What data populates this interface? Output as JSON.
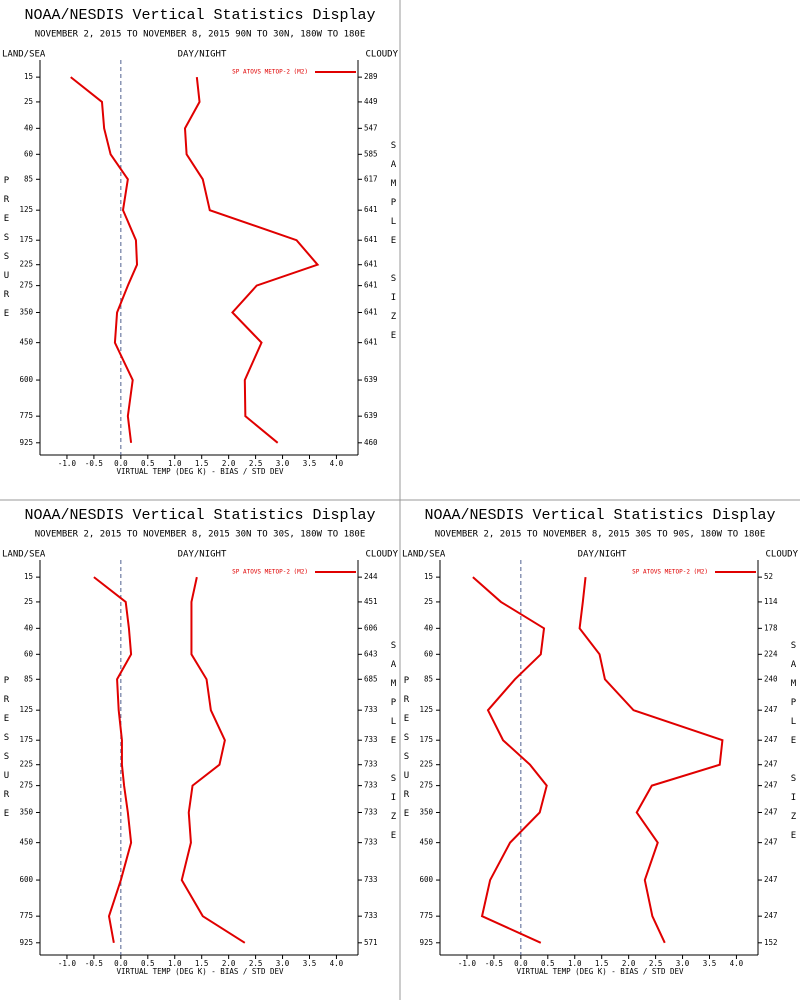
{
  "chart_data": [
    {
      "type": "line",
      "title": "NOAA/NESDIS Vertical Statistics Display",
      "subtitle": "NOVEMBER 2, 2015 TO NOVEMBER 8, 2015  90N TO 30N, 180W TO 180E",
      "header_left": "LAND/SEA",
      "header_center": "DAY/NIGHT",
      "header_right": "CLOUDY",
      "xlabel": "VIRTUAL TEMP (DEG K) - BIAS / STD DEV",
      "ylabel": "PRESSURE",
      "y2label": "SAMPLE SIZE",
      "y": [
        15,
        25,
        40,
        60,
        85,
        125,
        175,
        225,
        275,
        350,
        450,
        600,
        775,
        925
      ],
      "series": [
        {
          "name": "SP ATOVS METOP-2 (M2)",
          "color": "#e00000",
          "values": [
            -0.93,
            -0.35,
            -0.31,
            -0.19,
            0.13,
            0.04,
            0.28,
            0.3,
            0.13,
            -0.07,
            -0.11,
            0.22,
            0.13,
            0.19
          ]
        },
        {
          "color": "#e00000",
          "values": [
            1.41,
            1.46,
            1.19,
            1.22,
            1.52,
            1.65,
            3.26,
            3.65,
            2.52,
            2.07,
            2.61,
            2.3,
            2.31,
            2.91
          ]
        }
      ],
      "sample_sizes": [
        289,
        449,
        547,
        585,
        617,
        641,
        641,
        641,
        641,
        641,
        641,
        639,
        639,
        460
      ],
      "xlim": [
        -1.5,
        4.4
      ],
      "xticks": [
        {
          "value": -1,
          "label": "-1.0"
        },
        -0.5,
        {
          "value": 0,
          "label": "0.0"
        },
        0.5,
        {
          "value": 1,
          "label": "1.0"
        },
        1.5,
        {
          "value": 2,
          "label": "2.0"
        },
        2.5,
        {
          "value": 3,
          "label": "3.0"
        },
        3.5,
        {
          "value": 4,
          "label": "4.0"
        }
      ],
      "ylim": [
        1000,
        10
      ]
    },
    {
      "type": "line",
      "title": "NOAA/NESDIS Vertical Statistics Display",
      "subtitle": "NOVEMBER 2, 2015 TO NOVEMBER 8, 2015  30N TO 30S, 180W TO 180E",
      "header_left": "LAND/SEA",
      "header_center": "DAY/NIGHT",
      "header_right": "CLOUDY",
      "xlabel": "VIRTUAL TEMP (DEG K) - BIAS / STD DEV",
      "ylabel": "PRESSURE",
      "y2label": "SAMPLE SIZE",
      "y": [
        15,
        25,
        40,
        60,
        85,
        125,
        175,
        225,
        275,
        350,
        450,
        600,
        775,
        925
      ],
      "series": [
        {
          "name": "SP ATOVS METOP-2 (M2)",
          "color": "#e00000",
          "values": [
            -0.5,
            0.09,
            0.15,
            0.19,
            -0.07,
            -0.04,
            0.02,
            0.02,
            0.06,
            0.13,
            0.19,
            0.0,
            -0.22,
            -0.13
          ]
        },
        {
          "color": "#e00000",
          "values": [
            1.41,
            1.31,
            1.31,
            1.31,
            1.59,
            1.67,
            1.93,
            1.83,
            1.33,
            1.26,
            1.3,
            1.13,
            1.52,
            2.3
          ]
        }
      ],
      "sample_sizes": [
        244,
        451,
        606,
        643,
        685,
        733,
        733,
        733,
        733,
        733,
        733,
        733,
        733,
        571
      ],
      "xlim": [
        -1.5,
        4.4
      ],
      "xticks": [
        {
          "value": -1,
          "label": "-1.0"
        },
        -0.5,
        {
          "value": 0,
          "label": "0.0"
        },
        0.5,
        {
          "value": 1,
          "label": "1.0"
        },
        1.5,
        {
          "value": 2,
          "label": "2.0"
        },
        2.5,
        {
          "value": 3,
          "label": "3.0"
        },
        3.5,
        {
          "value": 4,
          "label": "4.0"
        }
      ],
      "ylim": [
        1000,
        10
      ]
    },
    {
      "type": "line",
      "title": "NOAA/NESDIS Vertical Statistics Display",
      "subtitle": "NOVEMBER 2, 2015 TO NOVEMBER 8, 2015  30S TO 90S, 180W TO 180E",
      "header_left": "LAND/SEA",
      "header_center": "DAY/NIGHT",
      "header_right": "CLOUDY",
      "xlabel": "VIRTUAL TEMP (DEG K) - BIAS / STD DEV",
      "ylabel": "PRESSURE",
      "y2label": "SAMPLE SIZE",
      "y": [
        15,
        25,
        40,
        60,
        85,
        125,
        175,
        225,
        275,
        350,
        450,
        600,
        775,
        925
      ],
      "series": [
        {
          "name": "SP ATOVS METOP-2 (M2)",
          "color": "#e00000",
          "values": [
            -0.89,
            -0.37,
            0.43,
            0.37,
            -0.11,
            -0.61,
            -0.33,
            0.17,
            0.48,
            0.35,
            -0.2,
            -0.57,
            -0.72,
            0.37
          ]
        },
        {
          "color": "#e00000",
          "values": [
            1.2,
            1.15,
            1.09,
            1.46,
            1.56,
            2.09,
            3.74,
            3.69,
            2.43,
            2.15,
            2.54,
            2.3,
            2.44,
            2.67
          ]
        }
      ],
      "sample_sizes": [
        52,
        114,
        178,
        224,
        240,
        247,
        247,
        247,
        247,
        247,
        247,
        247,
        247,
        152
      ],
      "xlim": [
        -1.5,
        4.4
      ],
      "xticks": [
        {
          "value": -1,
          "label": "-1.0"
        },
        -0.5,
        {
          "value": 0,
          "label": "0.0"
        },
        0.5,
        {
          "value": 1,
          "label": "1.0"
        },
        1.5,
        {
          "value": 2,
          "label": "2.0"
        },
        2.5,
        {
          "value": 3,
          "label": "3.0"
        },
        3.5,
        {
          "value": 4,
          "label": "4.0"
        }
      ],
      "ylim": [
        1000,
        10
      ]
    }
  ]
}
